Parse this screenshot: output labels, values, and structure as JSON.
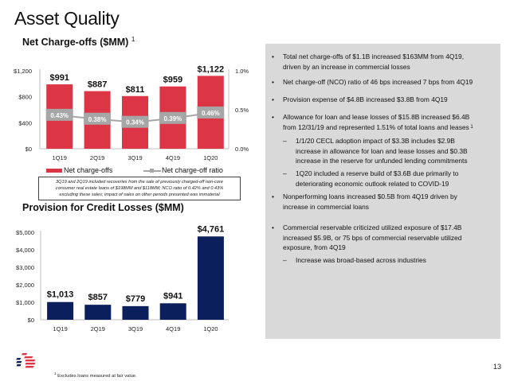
{
  "page": {
    "title": "Asset Quality",
    "page_number": "13",
    "footnote_marker": "1",
    "footnote": "Excludes loans measured at fair value."
  },
  "colors": {
    "nco_bar": "#dc3545",
    "provision_bar": "#0b1f5c",
    "ratio_label_bg": "#a6a6a6",
    "panel_bg": "#d9d9d9",
    "logo_red": "#dc3545",
    "logo_blue": "#0b1f5c"
  },
  "nco_section": {
    "title": "Net Charge-offs ($MM)",
    "title_superscript": "1",
    "legend": {
      "bars": "Net charge-offs",
      "line": "Net charge-off ratio"
    },
    "note_lines": [
      "3Q19 and 2Q19 included recoveries from the sale of previously charged-off non-core",
      "consumer real estate loans of $198MM and $118MM; NCO ratio of 0.42% and 0.43%",
      "excluding these sales; impact of sales on other periods presented was immaterial"
    ]
  },
  "provision_section": {
    "title": "Provision for Credit Losses ($MM)"
  },
  "chart_data": [
    {
      "type": "bar",
      "title": "Net Charge-offs ($MM)",
      "categories": [
        "1Q19",
        "2Q19",
        "3Q19",
        "4Q19",
        "1Q20"
      ],
      "series": [
        {
          "name": "Net charge-offs",
          "type": "bar",
          "axis": "left",
          "values": [
            991,
            887,
            811,
            959,
            1122
          ],
          "labels": [
            "$991",
            "$887",
            "$811",
            "$959",
            "$1,122"
          ]
        },
        {
          "name": "Net charge-off ratio",
          "type": "line",
          "axis": "right",
          "values": [
            0.43,
            0.38,
            0.34,
            0.39,
            0.46
          ],
          "labels": [
            "0.43%",
            "0.38%",
            "0.34%",
            "0.39%",
            "0.46%"
          ]
        }
      ],
      "ylim": [
        0,
        1200
      ],
      "yticks": [
        0,
        400,
        800,
        1200
      ],
      "ytick_labels": [
        "$0",
        "$400",
        "$800",
        "$1,200"
      ],
      "y2lim": [
        0,
        1.0
      ],
      "y2ticks": [
        0,
        0.5,
        1.0
      ],
      "y2tick_labels": [
        "0.0%",
        "0.5%",
        "1.0%"
      ],
      "grid": false,
      "legend_position": "bottom"
    },
    {
      "type": "bar",
      "title": "Provision for Credit Losses ($MM)",
      "categories": [
        "1Q19",
        "2Q19",
        "3Q19",
        "4Q19",
        "1Q20"
      ],
      "series": [
        {
          "name": "Provision for credit losses",
          "type": "bar",
          "axis": "left",
          "values": [
            1013,
            857,
            779,
            941,
            4761
          ],
          "labels": [
            "$1,013",
            "$857",
            "$779",
            "$941",
            "$4,761"
          ]
        }
      ],
      "ylim": [
        0,
        5000
      ],
      "yticks": [
        0,
        1000,
        2000,
        3000,
        4000,
        5000
      ],
      "ytick_labels": [
        "$0",
        "$1,000",
        "$2,000",
        "$3,000",
        "$4,000",
        "$5,000"
      ],
      "grid": false
    }
  ],
  "bullets": [
    {
      "level": 1,
      "marker": "•",
      "lines": [
        "Total net charge-offs of $1.1B increased $163MM from 4Q19,",
        "driven by an increase in commercial losses"
      ]
    },
    {
      "level": 1,
      "marker": "•",
      "lines": [
        "Net charge-off (NCO) ratio of 46 bps increased 7 bps from 4Q19"
      ]
    },
    {
      "level": 1,
      "marker": "•",
      "lines": [
        "Provision expense of $4.8B increased $3.8B from 4Q19"
      ]
    },
    {
      "level": 1,
      "marker": "•",
      "lines": [
        "Allowance for loan and lease losses of $15.8B increased $6.4B",
        "from 12/31/19 and represented 1.51% of total loans and leases"
      ],
      "superscript": "1"
    },
    {
      "level": 2,
      "marker": "–",
      "lines": [
        "1/1/20 CECL adoption impact of $3.3B includes $2.9B",
        "increase in allowance for loan and lease losses and $0.3B",
        "increase in the reserve for unfunded lending commitments"
      ]
    },
    {
      "level": 2,
      "marker": "–",
      "lines": [
        "1Q20 included a reserve build of $3.6B due primarily to",
        "deteriorating economic outlook related to COVID-19"
      ]
    },
    {
      "level": 1,
      "marker": "•",
      "lines": [
        "Nonperforming loans increased $0.5B from 4Q19 driven by",
        "increase in commercial loans"
      ]
    },
    {
      "level": 1,
      "marker": "•",
      "lines": [
        "Commercial reservable criticized utilized exposure of $17.4B",
        "increased $5.9B, or 75 bps of commercial reservable utilized",
        "exposure, from 4Q19"
      ]
    },
    {
      "level": 2,
      "marker": "–",
      "lines": [
        "Increase was broad-based across industries"
      ]
    }
  ]
}
